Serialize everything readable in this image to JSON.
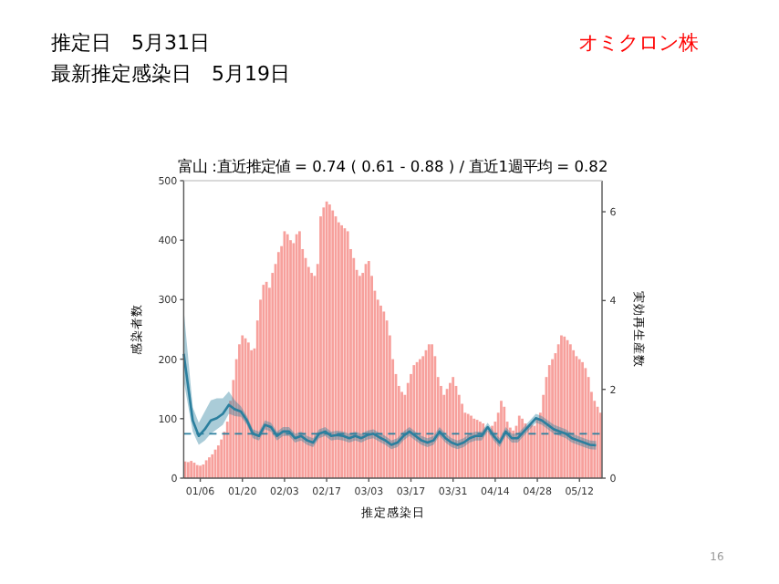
{
  "chart_data": {
    "type": "bar",
    "title": "富山 :直近推定値 = 0.74 ( 0.61 - 0.88 ) / 直近1週平均 = 0.82",
    "annotations": [
      "推定日　5月31日",
      "最新推定感染日　5月19日",
      "オミクロン株",
      "16"
    ],
    "xlabel": "推定感染日",
    "ylabel": "感染者数",
    "y2label": "実効再生産数",
    "x": [
      "--01-01",
      "--01-02",
      "--01-03",
      "--01-04",
      "--01-05",
      "--01-06",
      "--01-07",
      "--01-08",
      "--01-09",
      "--01-10",
      "--01-11",
      "--01-12",
      "--01-13",
      "--01-14",
      "--01-15",
      "--01-16",
      "--01-17",
      "--01-18",
      "--01-19",
      "--01-20",
      "--01-21",
      "--01-22",
      "--01-23",
      "--01-24",
      "--01-25",
      "--01-26",
      "--01-27",
      "--01-28",
      "--01-29",
      "--01-30",
      "--01-31",
      "--02-01",
      "--02-02",
      "--02-03",
      "--02-04",
      "--02-05",
      "--02-06",
      "--02-07",
      "--02-08",
      "--02-09",
      "--02-10",
      "--02-11",
      "--02-12",
      "--02-13",
      "--02-14",
      "--02-15",
      "--02-16",
      "--02-17",
      "--02-18",
      "--02-19",
      "--02-20",
      "--02-21",
      "--02-22",
      "--02-23",
      "--02-24",
      "--02-25",
      "--02-26",
      "--02-27",
      "--02-28",
      "--03-01",
      "--03-02",
      "--03-03",
      "--03-04",
      "--03-05",
      "--03-06",
      "--03-07",
      "--03-08",
      "--03-09",
      "--03-10",
      "--03-11",
      "--03-12",
      "--03-13",
      "--03-14",
      "--03-15",
      "--03-16",
      "--03-17",
      "--03-18",
      "--03-19",
      "--03-20",
      "--03-21",
      "--03-22",
      "--03-23",
      "--03-24",
      "--03-25",
      "--03-26",
      "--03-27",
      "--03-28",
      "--03-29",
      "--03-30",
      "--03-31",
      "--04-01",
      "--04-02",
      "--04-03",
      "--04-04",
      "--04-05",
      "--04-06",
      "--04-07",
      "--04-08",
      "--04-09",
      "--04-10",
      "--04-11",
      "--04-12",
      "--04-13",
      "--04-14",
      "--04-15",
      "--04-16",
      "--04-17",
      "--04-18",
      "--04-19",
      "--04-20",
      "--04-21",
      "--04-22",
      "--04-23",
      "--04-24",
      "--04-25",
      "--04-26",
      "--04-27",
      "--04-28",
      "--04-29",
      "--04-30",
      "--05-01",
      "--05-02",
      "--05-03",
      "--05-04",
      "--05-05",
      "--05-06",
      "--05-07",
      "--05-08",
      "--05-09",
      "--05-10",
      "--05-11",
      "--05-12",
      "--05-13",
      "--05-14",
      "--05-15",
      "--05-16",
      "--05-17",
      "--05-18",
      "--05-19"
    ],
    "series": [
      {
        "color": "#f7a09c",
        "values": [
          28,
          27,
          29,
          26,
          22,
          21,
          23,
          30,
          35,
          40,
          48,
          55,
          65,
          78,
          95,
          130,
          165,
          200,
          225,
          240,
          235,
          228,
          215,
          218,
          265,
          300,
          325,
          330,
          320,
          345,
          360,
          380,
          390,
          415,
          410,
          400,
          395,
          410,
          415,
          385,
          370,
          355,
          345,
          340,
          360,
          440,
          455,
          465,
          460,
          450,
          440,
          430,
          425,
          420,
          415,
          385,
          370,
          350,
          340,
          345,
          360,
          365,
          340,
          315,
          300,
          290,
          280,
          265,
          240,
          200,
          175,
          155,
          145,
          140,
          160,
          175,
          190,
          195,
          200,
          205,
          215,
          225,
          225,
          205,
          170,
          155,
          140,
          150,
          160,
          170,
          155,
          140,
          125,
          110,
          108,
          105,
          100,
          98,
          95,
          92,
          85,
          80,
          88,
          95,
          110,
          130,
          120,
          95,
          85,
          80,
          88,
          105,
          100,
          92,
          88,
          90,
          88,
          100,
          110,
          140,
          170,
          190,
          200,
          210,
          225,
          240,
          238,
          232,
          225,
          215,
          205,
          200,
          195,
          185,
          170,
          145,
          130,
          120,
          110
        ]
      },
      {
        "type": "line",
        "axis": "y2",
        "color": "#2b7f9e",
        "x": [
          "--01-01",
          "--01-04",
          "--01-06",
          "--01-08",
          "--01-10",
          "--01-12",
          "--01-14",
          "--01-16",
          "--01-18",
          "--01-20",
          "--01-22",
          "--01-24",
          "--01-26",
          "--01-28",
          "--01-30",
          "--02-01",
          "--02-03",
          "--02-05",
          "--02-07",
          "--02-09",
          "--02-11",
          "--02-13",
          "--02-15",
          "--02-17",
          "--02-19",
          "--02-21",
          "--02-23",
          "--02-25",
          "--02-27",
          "--03-01",
          "--03-03",
          "--03-05",
          "--03-07",
          "--03-09",
          "--03-11",
          "--03-13",
          "--03-15",
          "--03-17",
          "--03-19",
          "--03-21",
          "--03-23",
          "--03-25",
          "--03-27",
          "--03-29",
          "--03-31",
          "--04-02",
          "--04-04",
          "--04-06",
          "--04-08",
          "--04-10",
          "--04-12",
          "--04-14",
          "--04-16",
          "--04-18",
          "--04-20",
          "--04-22",
          "--04-24",
          "--04-26",
          "--04-28",
          "--04-30",
          "--05-02",
          "--05-04",
          "--05-06",
          "--05-08",
          "--05-10",
          "--05-12",
          "--05-14",
          "--05-16",
          "--05-18"
        ],
        "values": [
          2.8,
          1.3,
          0.95,
          1.1,
          1.3,
          1.35,
          1.45,
          1.65,
          1.55,
          1.5,
          1.3,
          1.0,
          0.95,
          1.2,
          1.15,
          0.95,
          1.05,
          1.05,
          0.9,
          0.95,
          0.85,
          0.8,
          1.0,
          1.05,
          0.95,
          0.97,
          0.95,
          0.9,
          0.95,
          0.9,
          0.97,
          1.0,
          0.92,
          0.85,
          0.75,
          0.8,
          0.95,
          1.05,
          0.95,
          0.85,
          0.8,
          0.85,
          1.05,
          0.9,
          0.8,
          0.75,
          0.8,
          0.9,
          0.95,
          0.95,
          1.15,
          0.95,
          0.8,
          1.05,
          0.9,
          0.9,
          1.05,
          1.2,
          1.35,
          1.3,
          1.2,
          1.1,
          1.05,
          1.0,
          0.9,
          0.85,
          0.8,
          0.75,
          0.74
        ],
        "lower": [
          2.2,
          1.05,
          0.75,
          0.85,
          1.0,
          1.1,
          1.2,
          1.45,
          1.4,
          1.38,
          1.2,
          0.9,
          0.85,
          1.1,
          1.05,
          0.85,
          0.95,
          0.95,
          0.8,
          0.85,
          0.75,
          0.7,
          0.9,
          0.95,
          0.85,
          0.87,
          0.85,
          0.8,
          0.85,
          0.8,
          0.87,
          0.9,
          0.82,
          0.75,
          0.65,
          0.7,
          0.85,
          0.95,
          0.85,
          0.75,
          0.7,
          0.75,
          0.95,
          0.8,
          0.7,
          0.65,
          0.7,
          0.8,
          0.85,
          0.85,
          1.05,
          0.85,
          0.7,
          0.95,
          0.8,
          0.8,
          0.95,
          1.1,
          1.25,
          1.2,
          1.1,
          1.0,
          0.95,
          0.9,
          0.8,
          0.75,
          0.7,
          0.65,
          0.64
        ],
        "upper": [
          3.8,
          1.6,
          1.25,
          1.5,
          1.75,
          1.8,
          1.8,
          1.95,
          1.75,
          1.62,
          1.4,
          1.1,
          1.05,
          1.3,
          1.25,
          1.05,
          1.15,
          1.15,
          1.0,
          1.05,
          0.95,
          0.9,
          1.1,
          1.15,
          1.05,
          1.07,
          1.05,
          1.0,
          1.05,
          1.0,
          1.07,
          1.1,
          1.02,
          0.95,
          0.85,
          0.9,
          1.05,
          1.15,
          1.05,
          0.95,
          0.9,
          0.95,
          1.15,
          1.0,
          0.9,
          0.85,
          0.9,
          1.0,
          1.05,
          1.05,
          1.25,
          1.05,
          0.9,
          1.15,
          1.0,
          1.0,
          1.15,
          1.3,
          1.45,
          1.4,
          1.3,
          1.2,
          1.15,
          1.1,
          1.0,
          0.95,
          0.9,
          0.85,
          0.84
        ]
      }
    ],
    "xlim": [
      "--01-01",
      "--05-20"
    ],
    "xticks": [
      {
        "value": "--01-06",
        "label": "01/06"
      },
      {
        "value": "--01-20",
        "label": "01/20"
      },
      {
        "value": "--02-03",
        "label": "02/03"
      },
      {
        "value": "--02-17",
        "label": "02/17"
      },
      {
        "value": "--03-03",
        "label": "03/03"
      },
      {
        "value": "--03-17",
        "label": "03/17"
      },
      {
        "value": "--03-31",
        "label": "03/31"
      },
      {
        "value": "--04-14",
        "label": "04/14"
      },
      {
        "value": "--04-28",
        "label": "04/28"
      },
      {
        "value": "--05-12",
        "label": "05/12"
      }
    ],
    "ylim": [
      0,
      500
    ],
    "yticks": [
      0,
      100,
      200,
      300,
      400,
      500
    ],
    "y2lim": [
      0,
      6.7
    ],
    "y2ticks": [
      0,
      2,
      4,
      6
    ],
    "ref_lines": [
      {
        "axis": "y2",
        "value": 1,
        "color": "#2b7f9e",
        "line_style": "dashed"
      }
    ],
    "grid": false
  }
}
